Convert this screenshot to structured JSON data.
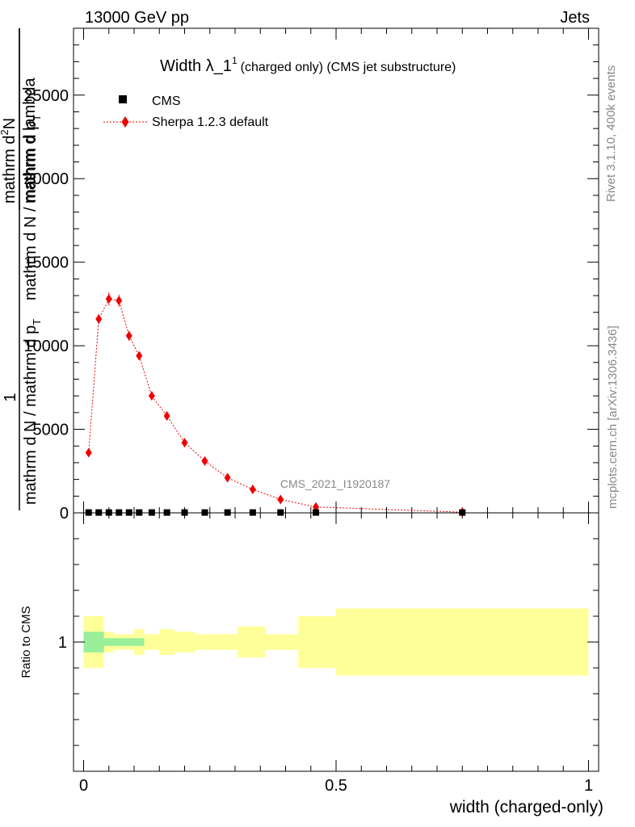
{
  "header": {
    "energy_label": "13000 GeV pp",
    "process_label": "Jets"
  },
  "side_labels": {
    "rivet_label": "Rivet 3.1.10,  400k events",
    "mcplots_label": "mcplots.cern.ch [arXiv:1306.3436]"
  },
  "watermark": "CMS_2021_I1920187",
  "chart_data": {
    "type": "scatter",
    "title_main": "Width λ_1",
    "title_sup": "1",
    "title_suffix": "(charged only) (CMS jet substructure)",
    "ylabel_parts": {
      "one": "1",
      "numer": "mathrm d N / mathrm d p",
      "numer_sub": "T",
      "numer2": "mathrm d lambda",
      "denom": "mathrm d N / mathrm d p",
      "denom_sub": "T",
      "prefix": "mathrm d",
      "prefix_sup": "2",
      "prefix_n": "N"
    },
    "xlabel": "width (charged-only)",
    "ratio_ylabel": "Ratio to CMS",
    "xlim": [
      -0.02,
      1.02
    ],
    "ylim": [
      0,
      29000
    ],
    "yticks": [
      {
        "value": 0,
        "label": "0"
      },
      {
        "value": 5000,
        "label": "5000"
      },
      {
        "value": 10000,
        "label": "10000"
      },
      {
        "value": 15000,
        "label": "15000"
      },
      {
        "value": 20000,
        "label": "20000"
      },
      {
        "value": 25000,
        "label": "25000"
      }
    ],
    "xticks": [
      {
        "value": 0,
        "label": "0"
      },
      {
        "value": 0.5,
        "label": "0.5"
      },
      {
        "value": 1,
        "label": "1"
      }
    ],
    "ratio_ylim": [
      0.5,
      1.5
    ],
    "ratio_yticks": [
      {
        "value": 1,
        "label": "1"
      }
    ],
    "legend": {
      "position": "top-left",
      "cms_label": "CMS",
      "sherpa_label": "Sherpa 1.2.3 default"
    },
    "series": [
      {
        "name": "CMS",
        "color": "#000000",
        "x": [
          0.01,
          0.03,
          0.05,
          0.07,
          0.09,
          0.11,
          0.135,
          0.165,
          0.2,
          0.24,
          0.285,
          0.335,
          0.39,
          0.46,
          0.75
        ],
        "y": [
          20,
          20,
          20,
          20,
          20,
          20,
          20,
          20,
          20,
          20,
          20,
          20,
          20,
          20,
          20
        ]
      },
      {
        "name": "Sherpa 1.2.3 default",
        "color": "#ee0000",
        "x": [
          0.01,
          0.03,
          0.05,
          0.07,
          0.09,
          0.11,
          0.135,
          0.165,
          0.2,
          0.24,
          0.285,
          0.335,
          0.39,
          0.46,
          0.75
        ],
        "y": [
          3600,
          11600,
          12800,
          12700,
          10600,
          9400,
          7000,
          5800,
          4200,
          3100,
          2100,
          1400,
          800,
          350,
          40
        ],
        "yerr": [
          150,
          300,
          400,
          350,
          300,
          250,
          200,
          150,
          120,
          100,
          80,
          60,
          40,
          30,
          10
        ]
      }
    ],
    "ratio_bands": [
      {
        "x0": 0.0,
        "x1": 0.04,
        "y0": 0.9,
        "y1": 1.1,
        "color": "#ffff99"
      },
      {
        "x0": 0.04,
        "x1": 0.06,
        "y0": 0.96,
        "y1": 1.04,
        "color": "#ffff99"
      },
      {
        "x0": 0.06,
        "x1": 0.1,
        "y0": 0.97,
        "y1": 1.03,
        "color": "#ffff99"
      },
      {
        "x0": 0.1,
        "x1": 0.12,
        "y0": 0.95,
        "y1": 1.05,
        "color": "#ffff99"
      },
      {
        "x0": 0.12,
        "x1": 0.15,
        "y0": 0.97,
        "y1": 1.03,
        "color": "#ffff99"
      },
      {
        "x0": 0.15,
        "x1": 0.18,
        "y0": 0.95,
        "y1": 1.05,
        "color": "#ffff99"
      },
      {
        "x0": 0.18,
        "x1": 0.22,
        "y0": 0.96,
        "y1": 1.04,
        "color": "#ffff99"
      },
      {
        "x0": 0.22,
        "x1": 0.26,
        "y0": 0.97,
        "y1": 1.03,
        "color": "#ffff99"
      },
      {
        "x0": 0.26,
        "x1": 0.305,
        "y0": 0.97,
        "y1": 1.03,
        "color": "#ffff99"
      },
      {
        "x0": 0.305,
        "x1": 0.36,
        "y0": 0.94,
        "y1": 1.06,
        "color": "#ffff99"
      },
      {
        "x0": 0.36,
        "x1": 0.425,
        "y0": 0.97,
        "y1": 1.03,
        "color": "#ffff99"
      },
      {
        "x0": 0.425,
        "x1": 0.5,
        "y0": 0.9,
        "y1": 1.1,
        "color": "#ffff99"
      },
      {
        "x0": 0.5,
        "x1": 1.0,
        "y0": 0.87,
        "y1": 1.13,
        "color": "#ffff99"
      },
      {
        "x0": 0.0,
        "x1": 0.04,
        "y0": 0.96,
        "y1": 1.04,
        "color": "#99ee99"
      },
      {
        "x0": 0.04,
        "x1": 0.1,
        "y0": 0.985,
        "y1": 1.015,
        "color": "#99ee99"
      },
      {
        "x0": 0.1,
        "x1": 0.12,
        "y0": 0.985,
        "y1": 1.015,
        "color": "#99ee99"
      }
    ]
  }
}
